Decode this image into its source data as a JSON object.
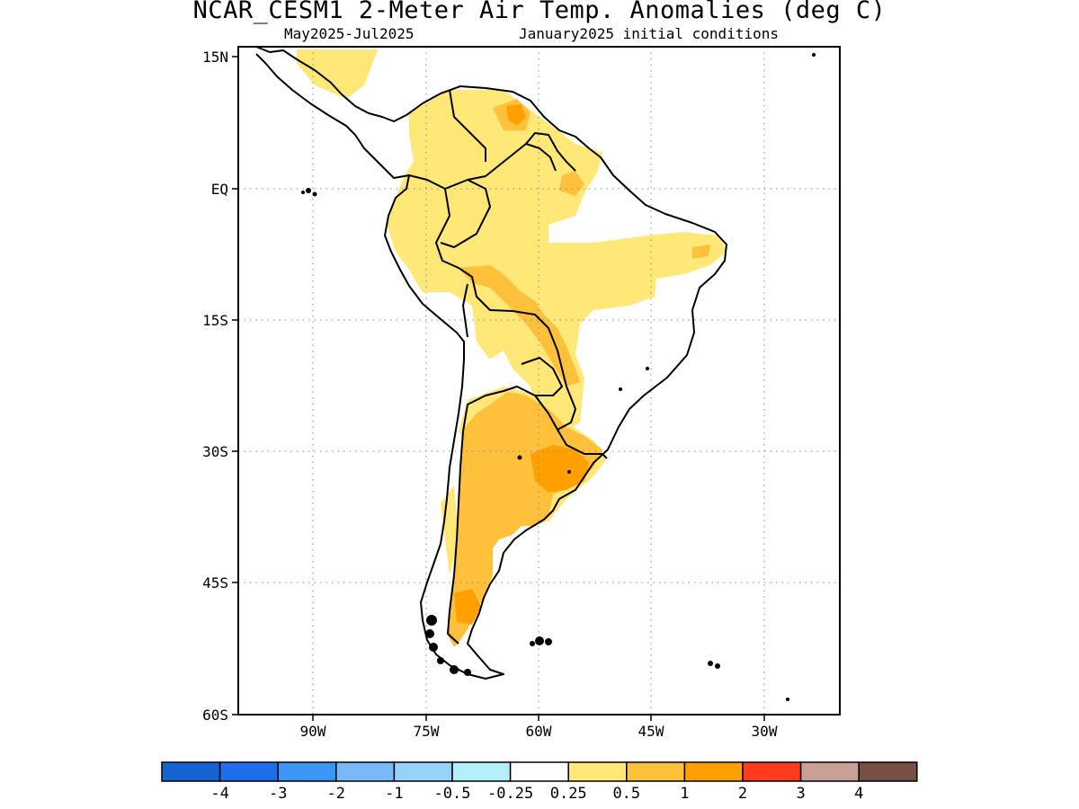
{
  "title": "NCAR_CESM1 2-Meter Air Temp. Anomalies (deg C)",
  "subtitle_left": "May2025-Jul2025",
  "subtitle_right": "January2025 initial conditions",
  "map": {
    "region": "South America",
    "lat_labels": [
      "15N",
      "EQ",
      "15S",
      "30S",
      "45S",
      "60S"
    ],
    "lon_labels": [
      "90W",
      "75W",
      "60W",
      "45W",
      "30W"
    ],
    "grid": "dotted"
  },
  "colorbar": {
    "colors": [
      "#1464d2",
      "#1e6eeb",
      "#3c96f5",
      "#78b9fa",
      "#96d2fa",
      "#b4f0fa",
      "#ffffff",
      "#ffe878",
      "#ffc03c",
      "#ffa000",
      "#ff3c1e",
      "#c8a096",
      "#785046"
    ],
    "labels": [
      "-4",
      "-3",
      "-2",
      "-1",
      "-0.5",
      "-0.25",
      "0.25",
      "0.5",
      "1",
      "2",
      "3",
      "4"
    ]
  },
  "anomaly_colors": {
    "light": "#ffe878",
    "medium": "#ffc03c",
    "strong": "#ffa000"
  }
}
